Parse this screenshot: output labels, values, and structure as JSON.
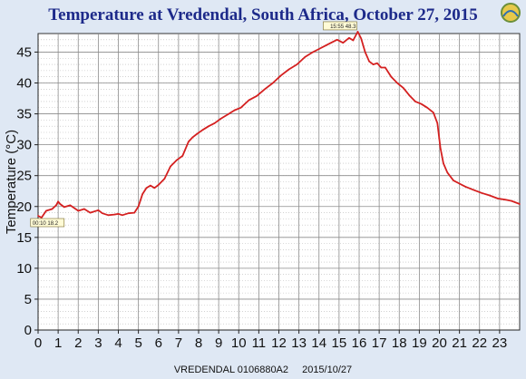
{
  "title": "Temperature at Vredendal, South Africa, October 27, 2015",
  "footer": {
    "station": "VREDENDAL 0106880A2",
    "date": "2015/10/27"
  },
  "colors": {
    "line": "#d42020",
    "grid": "#8c8c8c",
    "plot_bg": "#ffffff",
    "page_bg": "#dfe8f4",
    "title": "#1d2a8a"
  },
  "annotations": {
    "max_label": "15:55 48.3",
    "min_label": "00:10 18.2"
  },
  "chart_data": {
    "type": "line",
    "title": "Temperature at Vredendal, South Africa, October 27, 2015",
    "xlabel": "",
    "ylabel": "Temperature (°C)",
    "xlim": [
      0,
      24
    ],
    "ylim": [
      0,
      48
    ],
    "xticks": [
      0,
      1,
      2,
      3,
      4,
      5,
      6,
      7,
      8,
      9,
      10,
      11,
      12,
      13,
      14,
      15,
      16,
      17,
      18,
      19,
      20,
      21,
      22,
      23
    ],
    "yticks": [
      0,
      5,
      10,
      15,
      20,
      25,
      30,
      35,
      40,
      45
    ],
    "grid": true,
    "series": [
      {
        "x": [
          0.0,
          0.17,
          0.4,
          0.7,
          0.9,
          1.0,
          1.1,
          1.3,
          1.6,
          2.0,
          2.3,
          2.6,
          3.0,
          3.2,
          3.5,
          3.8,
          4.0,
          4.2,
          4.5,
          4.8,
          5.0,
          5.2,
          5.4,
          5.6,
          5.8,
          6.0,
          6.3,
          6.6,
          6.9,
          7.2,
          7.5,
          7.7,
          7.9,
          8.2,
          8.5,
          8.8,
          9.1,
          9.5,
          9.8,
          10.1,
          10.5,
          10.9,
          11.3,
          11.7,
          12.1,
          12.5,
          12.9,
          13.3,
          13.7,
          14.0,
          14.3,
          14.6,
          14.9,
          15.2,
          15.5,
          15.7,
          15.93,
          16.1,
          16.3,
          16.5,
          16.7,
          16.9,
          17.1,
          17.3,
          17.6,
          17.9,
          18.2,
          18.5,
          18.8,
          19.1,
          19.4,
          19.7,
          19.9,
          20.05,
          20.2,
          20.4,
          20.7,
          21.0,
          21.3,
          21.7,
          22.1,
          22.5,
          22.9,
          23.3,
          23.6,
          24.0
        ],
        "y": [
          18.5,
          18.2,
          19.3,
          19.6,
          20.2,
          20.8,
          20.4,
          19.9,
          20.2,
          19.3,
          19.6,
          19.0,
          19.4,
          18.9,
          18.6,
          18.7,
          18.8,
          18.6,
          18.9,
          19.0,
          20.0,
          22.0,
          23.0,
          23.4,
          23.0,
          23.5,
          24.5,
          26.5,
          27.5,
          28.2,
          30.5,
          31.2,
          31.7,
          32.4,
          33.0,
          33.5,
          34.2,
          35.0,
          35.6,
          36.0,
          37.2,
          37.9,
          39.0,
          40.0,
          41.2,
          42.2,
          43.0,
          44.2,
          45.0,
          45.5,
          46.0,
          46.5,
          47.0,
          46.5,
          47.3,
          46.9,
          48.3,
          47.2,
          45.0,
          43.5,
          43.0,
          43.2,
          42.5,
          42.5,
          41.0,
          40.0,
          39.2,
          38.0,
          37.0,
          36.6,
          36.0,
          35.2,
          33.5,
          29.5,
          27.0,
          25.5,
          24.2,
          23.7,
          23.2,
          22.7,
          22.2,
          21.8,
          21.3,
          21.1,
          20.9,
          20.4
        ]
      }
    ]
  }
}
